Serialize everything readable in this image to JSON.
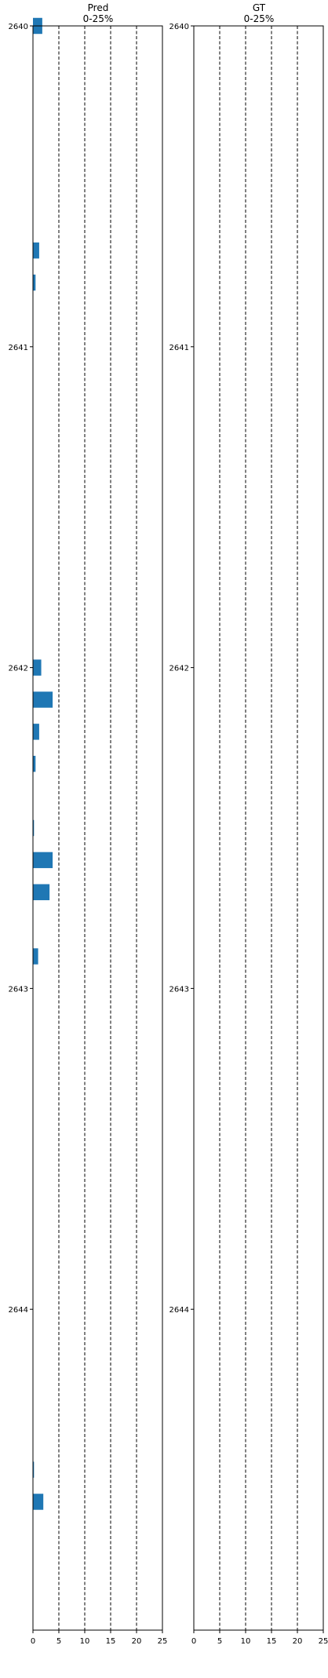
{
  "chart_data": [
    {
      "type": "bar",
      "orientation": "horizontal",
      "title": "Pred\n0-25%",
      "title_lines": [
        "Pred",
        "0-25%"
      ],
      "xlim": [
        0,
        25
      ],
      "ylim": [
        2640,
        2645
      ],
      "y_inverted": true,
      "xticks": [
        0,
        5,
        10,
        15,
        20,
        25
      ],
      "yticks": [
        2640,
        2641,
        2642,
        2643,
        2644
      ],
      "vertical_reference_lines": [
        5,
        10,
        15,
        20,
        25
      ],
      "bar_height": 0.05,
      "bar_color": "#1f77b4",
      "bars": [
        {
          "y": 2640.0,
          "value": 1.8
        },
        {
          "y": 2640.7,
          "value": 1.2
        },
        {
          "y": 2640.8,
          "value": 0.5
        },
        {
          "y": 2642.0,
          "value": 1.6
        },
        {
          "y": 2642.1,
          "value": 3.8
        },
        {
          "y": 2642.2,
          "value": 1.2
        },
        {
          "y": 2642.3,
          "value": 0.5
        },
        {
          "y": 2642.5,
          "value": 0.2
        },
        {
          "y": 2642.6,
          "value": 3.8
        },
        {
          "y": 2642.7,
          "value": 3.2
        },
        {
          "y": 2642.9,
          "value": 1.0
        },
        {
          "y": 2644.5,
          "value": 0.2
        },
        {
          "y": 2644.6,
          "value": 2.0
        }
      ]
    },
    {
      "type": "bar",
      "orientation": "horizontal",
      "title": "GT\n0-25%",
      "title_lines": [
        "GT",
        "0-25%"
      ],
      "xlim": [
        0,
        25
      ],
      "ylim": [
        2640,
        2645
      ],
      "y_inverted": true,
      "xticks": [
        0,
        5,
        10,
        15,
        20,
        25
      ],
      "yticks": [
        2640,
        2641,
        2642,
        2643,
        2644
      ],
      "vertical_reference_lines": [
        5,
        10,
        15,
        20,
        25
      ],
      "bar_height": 0.05,
      "bar_color": "#1f77b4",
      "bars": []
    }
  ]
}
